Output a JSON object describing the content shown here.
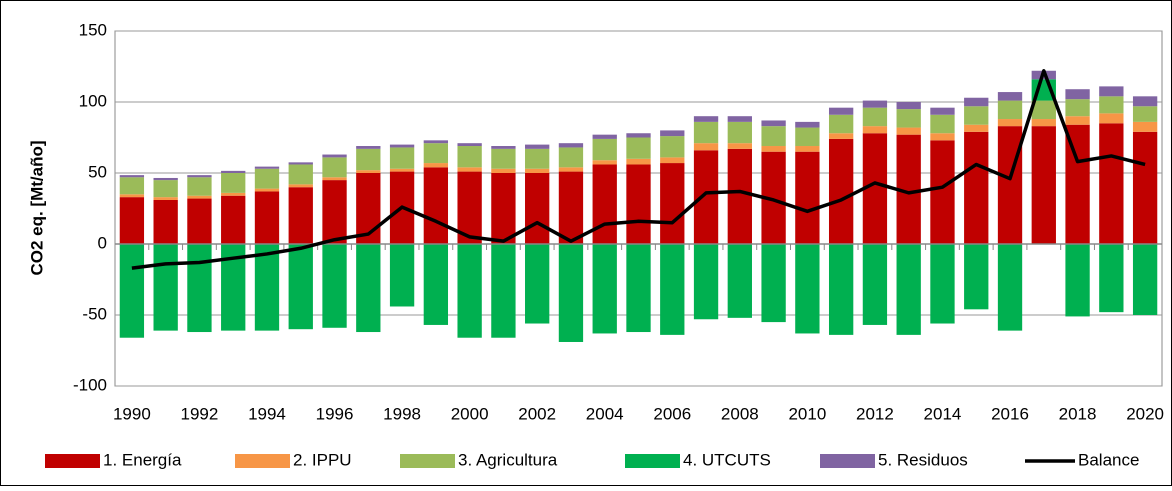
{
  "chart_data": {
    "type": "bar",
    "y_label": "CO2 eq. [Mt/año]",
    "categories": [
      "1990",
      null,
      "1992",
      null,
      "1994",
      null,
      "1996",
      null,
      "1998",
      null,
      "2000",
      null,
      "2002",
      null,
      "2004",
      null,
      "2006",
      null,
      "2008",
      null,
      "2010",
      null,
      "2012",
      null,
      "2014",
      null,
      "2016",
      null,
      "2018",
      null,
      "2020"
    ],
    "ylim": [
      -100,
      150
    ],
    "yticks": [
      -100,
      -50,
      0,
      50,
      100,
      150
    ],
    "grid": true,
    "stacked": true,
    "legend": "bottom",
    "series": [
      {
        "name": "1. Energía",
        "color": "#c00000",
        "values": [
          33,
          31,
          32,
          34,
          37,
          40,
          45,
          50,
          51,
          54,
          51,
          50,
          50,
          51,
          56,
          56,
          57,
          66,
          67,
          65,
          65,
          74,
          78,
          77,
          73,
          79,
          83,
          83,
          84,
          85,
          79
        ]
      },
      {
        "name": "2. IPPU",
        "color": "#f79646",
        "values": [
          2,
          2,
          2,
          2,
          2,
          2,
          2,
          2,
          2,
          3,
          3,
          3,
          3,
          3,
          3,
          4,
          4,
          5,
          4,
          4,
          4,
          4,
          5,
          5,
          5,
          5,
          5,
          5,
          6,
          7,
          7
        ]
      },
      {
        "name": "3. Agricultura",
        "color": "#9bbb59",
        "values": [
          12,
          12,
          13,
          14,
          14,
          14,
          14,
          15,
          15,
          14,
          15,
          14,
          14,
          14,
          15,
          15,
          15,
          15,
          15,
          14,
          13,
          13,
          13,
          13,
          13,
          13,
          13,
          13,
          12,
          12,
          11
        ]
      },
      {
        "name": "4. UTCUTS",
        "color": "#00b050",
        "values": [
          -66,
          -61,
          -62,
          -61,
          -61,
          -60,
          -59,
          -62,
          -44,
          -57,
          -66,
          -66,
          -56,
          -69,
          -63,
          -62,
          -64,
          -53,
          -52,
          -55,
          -63,
          -64,
          -57,
          -64,
          -56,
          -46,
          -61,
          15,
          -51,
          -48,
          -50
        ]
      },
      {
        "name": "5. Residuos",
        "color": "#8064a2",
        "values": [
          1.5,
          1.5,
          1.5,
          1.5,
          1.5,
          1.5,
          2,
          2,
          2,
          2,
          2,
          2,
          3,
          3,
          3,
          3,
          4,
          4,
          4,
          4,
          4,
          5,
          5,
          5,
          5,
          6,
          6,
          6,
          7,
          7,
          7
        ]
      },
      {
        "name": "Balance",
        "type": "line",
        "color": "#000000",
        "values": [
          -17,
          -14,
          -13,
          -10,
          -7,
          -3,
          3,
          7,
          26,
          16,
          5,
          2,
          15,
          2,
          14,
          16,
          15,
          36,
          37,
          31,
          23,
          31,
          43,
          36,
          40,
          56,
          46,
          122,
          58,
          62,
          56
        ]
      }
    ]
  }
}
